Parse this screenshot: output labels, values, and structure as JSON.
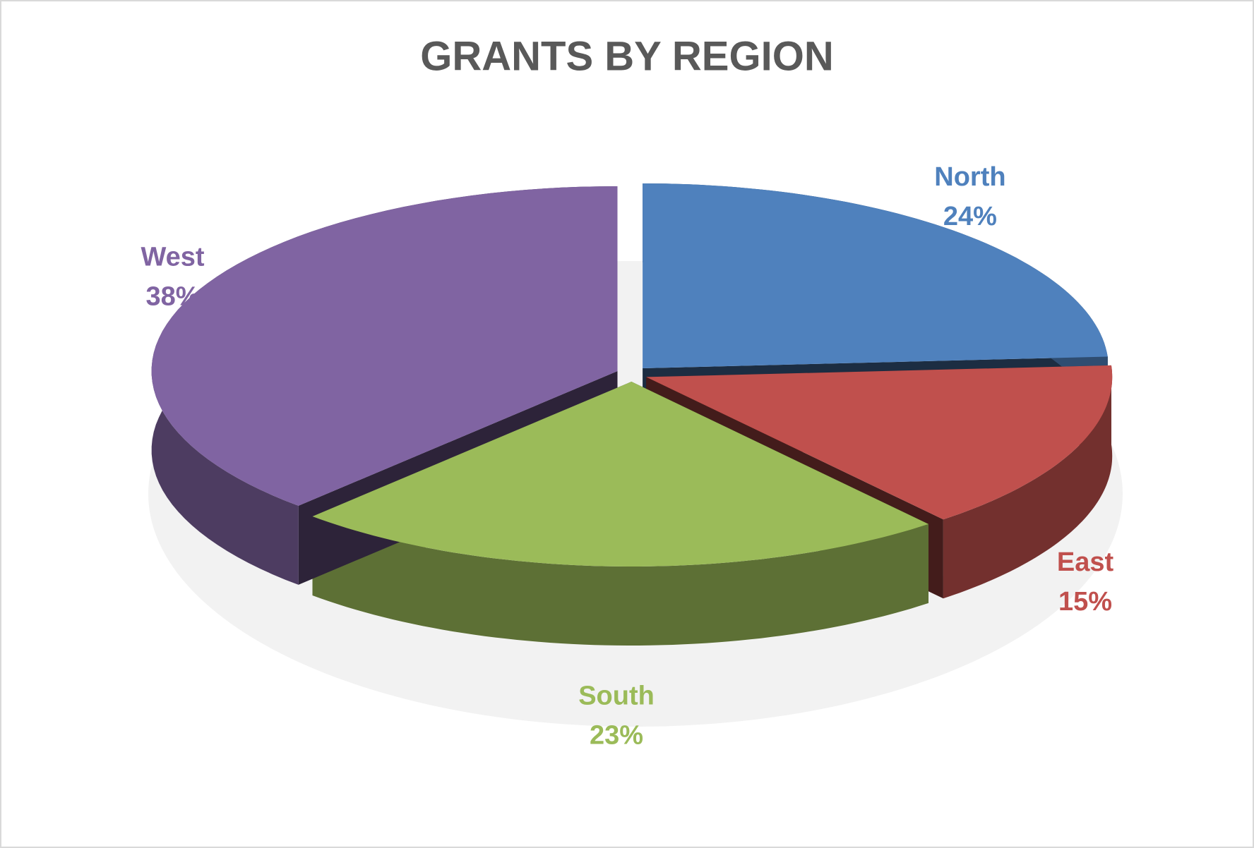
{
  "chart_data": {
    "type": "pie",
    "title": "GRANTS BY REGION",
    "categories": [
      "North",
      "East",
      "South",
      "West"
    ],
    "values": [
      24,
      15,
      23,
      38
    ],
    "value_labels": [
      "24%",
      "15%",
      "23%",
      "38%"
    ],
    "colors": [
      "#4f81bd",
      "#c0504d",
      "#9bbb59",
      "#8064a2"
    ]
  }
}
